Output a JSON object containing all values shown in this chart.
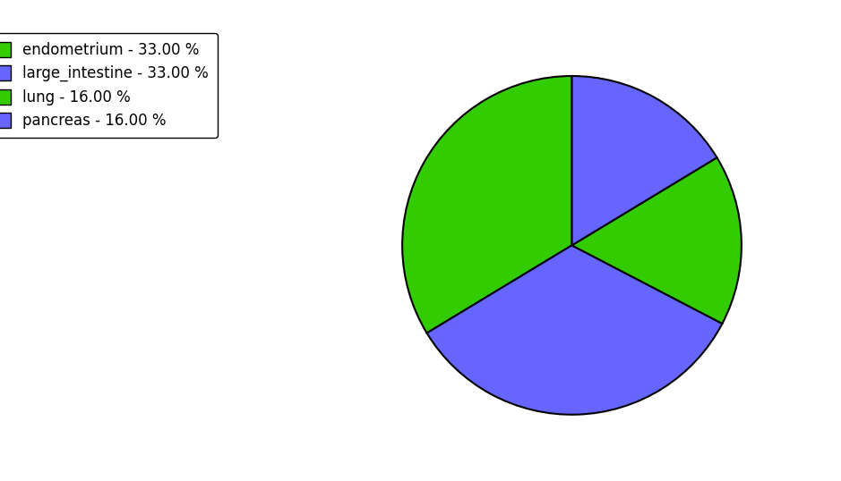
{
  "labels": [
    "endometrium",
    "large_intestine",
    "lung",
    "pancreas"
  ],
  "values": [
    33.0,
    33.0,
    16.0,
    16.0
  ],
  "colors": [
    "#33cc00",
    "#6666ff",
    "#33cc00",
    "#6666ff"
  ],
  "legend_labels": [
    "endometrium - 33.00 %",
    "large_intestine - 33.00 %",
    "lung - 16.00 %",
    "pancreas - 16.00 %"
  ],
  "legend_colors": [
    "#33cc00",
    "#6666ff",
    "#33cc00",
    "#6666ff"
  ],
  "background_color": "#ffffff",
  "startangle": 90,
  "figsize": [
    9.39,
    5.38
  ],
  "dpi": 100
}
